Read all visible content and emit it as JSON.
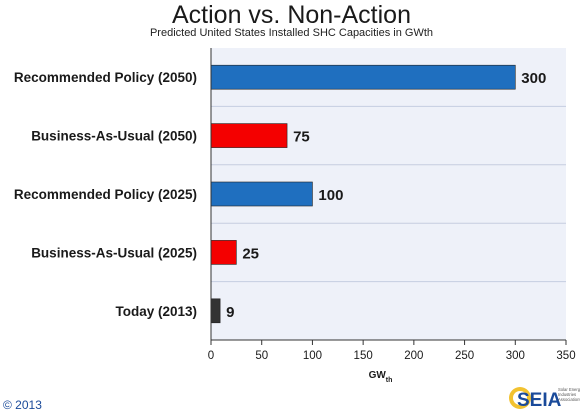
{
  "chart_data": {
    "type": "bar",
    "orientation": "horizontal",
    "title": "Action vs. Non-Action",
    "subtitle": "Predicted United States Installed SHC Capacities in GWth",
    "categories": [
      "Recommended Policy (2050)",
      "Business-As-Usual (2050)",
      "Recommended Policy (2025)",
      "Business-As-Usual (2025)",
      "Today (2013)"
    ],
    "values": [
      300,
      75,
      100,
      25,
      9
    ],
    "bar_colors": [
      "#1f6fbf",
      "#f40000",
      "#1f6fbf",
      "#f40000",
      "#333333"
    ],
    "xlabel": "GW",
    "xlabel_subscript": "th",
    "ylabel": "",
    "xlim": [
      0,
      350
    ],
    "xticks": [
      0,
      50,
      100,
      150,
      200,
      250,
      300,
      350
    ],
    "grid": "horizontal bands",
    "legend": "none"
  },
  "footer": {
    "copyright": "© 2013",
    "logo_text": "SEIA",
    "logo_tagline": "Solar Energy Industries Association®"
  },
  "colors": {
    "plot_background": "#eef1f9",
    "band_line": "#c5cde0",
    "axis": "#333333"
  }
}
